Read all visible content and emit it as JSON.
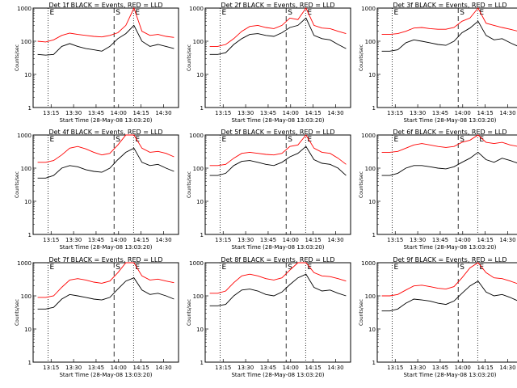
{
  "chart_data": [
    {
      "type": "line",
      "title": "Det 1f BLACK = Events, RED = LLD",
      "ylabel": "Counts/sec",
      "xlabel": "Start Time (28-May-08 13:03:20)",
      "yscale": "log",
      "ylim": [
        1,
        1000
      ],
      "yticks": [
        "1",
        "10",
        "100",
        "1000"
      ],
      "xticks": [
        "13:15",
        "13:30",
        "13:45",
        "14:00",
        "14:15",
        "14:30"
      ],
      "markers": [
        {
          "label": "E",
          "style": "dotted",
          "at": "13:13"
        },
        {
          "label": "S",
          "style": "dashed",
          "at": "13:57"
        },
        {
          "label": "E",
          "style": "dotted",
          "at": "14:10"
        }
      ],
      "series": [
        {
          "name": "LLD",
          "color": "#ff0000",
          "values": [
            100,
            95,
            110,
            150,
            175,
            160,
            150,
            140,
            135,
            150,
            180,
            300,
            1000,
            200,
            150,
            160,
            140,
            130
          ]
        },
        {
          "name": "Events",
          "color": "#000000",
          "values": [
            40,
            38,
            40,
            70,
            85,
            70,
            60,
            55,
            50,
            70,
            120,
            170,
            300,
            100,
            70,
            80,
            70,
            60
          ]
        }
      ]
    },
    {
      "type": "line",
      "title": "Det 2f BLACK = Events, RED = LLD",
      "ylabel": "Counts/sec",
      "xlabel": "Start Time (28-May-08 13:03:20)",
      "yscale": "log",
      "ylim": [
        1,
        1000
      ],
      "yticks": [
        "1",
        "10",
        "100",
        "1000"
      ],
      "xticks": [
        "13:15",
        "13:30",
        "13:45",
        "14:00",
        "14:15",
        "14:30"
      ],
      "markers": [
        {
          "label": "E",
          "style": "dotted",
          "at": "13:13"
        },
        {
          "label": "S",
          "style": "dashed",
          "at": "13:57"
        },
        {
          "label": "E",
          "style": "dotted",
          "at": "14:10"
        }
      ],
      "series": [
        {
          "name": "LLD",
          "color": "#ff0000",
          "values": [
            70,
            70,
            80,
            120,
            200,
            280,
            300,
            260,
            240,
            300,
            500,
            450,
            1000,
            300,
            250,
            240,
            200,
            170
          ]
        },
        {
          "name": "Events",
          "color": "#000000",
          "values": [
            40,
            40,
            45,
            80,
            120,
            160,
            170,
            150,
            140,
            180,
            260,
            300,
            500,
            150,
            120,
            110,
            80,
            60
          ]
        }
      ]
    },
    {
      "type": "line",
      "title": "Det 3f BLACK = Events, RED = LLD",
      "ylabel": "Counts/sec",
      "xlabel": "Start Time (28-May-08 13:03:20)",
      "yscale": "log",
      "ylim": [
        1,
        1000
      ],
      "yticks": [
        "1",
        "10",
        "100",
        "1000"
      ],
      "xticks": [
        "13:15",
        "13:30",
        "13:45",
        "14:00",
        "14:15",
        "14:30"
      ],
      "markers": [
        {
          "label": "E",
          "style": "dotted",
          "at": "13:13"
        },
        {
          "label": "S",
          "style": "dashed",
          "at": "13:57"
        },
        {
          "label": "E",
          "style": "dotted",
          "at": "14:10"
        }
      ],
      "series": [
        {
          "name": "LLD",
          "color": "#ff0000",
          "values": [
            160,
            160,
            170,
            200,
            250,
            260,
            240,
            230,
            230,
            260,
            400,
            500,
            1000,
            350,
            300,
            260,
            230,
            200
          ]
        },
        {
          "name": "Events",
          "color": "#000000",
          "values": [
            50,
            50,
            55,
            90,
            110,
            100,
            90,
            80,
            75,
            100,
            180,
            250,
            400,
            150,
            110,
            120,
            90,
            70
          ]
        }
      ]
    },
    {
      "type": "line",
      "title": "Det 4f BLACK = Events, RED = LLD",
      "ylabel": "Counts/sec",
      "xlabel": "Start Time (28-May-08 13:03:20)",
      "yscale": "log",
      "ylim": [
        1,
        1000
      ],
      "yticks": [
        "1",
        "10",
        "100",
        "1000"
      ],
      "xticks": [
        "13:15",
        "13:30",
        "13:45",
        "14:00",
        "14:15",
        "14:30"
      ],
      "markers": [
        {
          "label": "E",
          "style": "dotted",
          "at": "13:13"
        },
        {
          "label": "S",
          "style": "dashed",
          "at": "13:57"
        },
        {
          "label": "E",
          "style": "dotted",
          "at": "14:10"
        }
      ],
      "series": [
        {
          "name": "LLD",
          "color": "#ff0000",
          "values": [
            150,
            150,
            170,
            250,
            400,
            450,
            380,
            300,
            250,
            280,
            500,
            1000,
            1000,
            400,
            300,
            320,
            280,
            220
          ]
        },
        {
          "name": "Events",
          "color": "#000000",
          "values": [
            50,
            50,
            60,
            100,
            120,
            110,
            90,
            80,
            75,
            100,
            180,
            300,
            400,
            150,
            120,
            130,
            100,
            80
          ]
        }
      ]
    },
    {
      "type": "line",
      "title": "Det 5f BLACK = Events, RED = LLD",
      "ylabel": "Counts/sec",
      "xlabel": "Start Time (28-May-08 13:03:20)",
      "yscale": "log",
      "ylim": [
        1,
        1000
      ],
      "yticks": [
        "1",
        "10",
        "100",
        "1000"
      ],
      "xticks": [
        "13:15",
        "13:30",
        "13:45",
        "14:00",
        "14:15",
        "14:30"
      ],
      "markers": [
        {
          "label": "E",
          "style": "dotted",
          "at": "13:13"
        },
        {
          "label": "S",
          "style": "dashed",
          "at": "13:57"
        },
        {
          "label": "E",
          "style": "dotted",
          "at": "14:10"
        }
      ],
      "series": [
        {
          "name": "LLD",
          "color": "#ff0000",
          "values": [
            120,
            120,
            130,
            200,
            280,
            300,
            280,
            260,
            250,
            280,
            450,
            500,
            1000,
            400,
            300,
            280,
            200,
            130
          ]
        },
        {
          "name": "Events",
          "color": "#000000",
          "values": [
            60,
            60,
            70,
            120,
            160,
            170,
            150,
            130,
            120,
            150,
            220,
            280,
            450,
            180,
            140,
            130,
            100,
            60
          ]
        }
      ]
    },
    {
      "type": "line",
      "title": "Det 6f BLACK = Events, RED = LLD",
      "ylabel": "Counts/sec",
      "xlabel": "Start Time (28-May-08 13:03:20)",
      "yscale": "log",
      "ylim": [
        1,
        1000
      ],
      "yticks": [
        "1",
        "10",
        "100",
        "1000"
      ],
      "xticks": [
        "13:15",
        "13:30",
        "13:45",
        "14:00",
        "14:15",
        "14:30"
      ],
      "markers": [
        {
          "label": "E",
          "style": "dotted",
          "at": "13:13"
        },
        {
          "label": "S",
          "style": "dashed",
          "at": "13:57"
        },
        {
          "label": "E",
          "style": "dotted",
          "at": "14:10"
        }
      ],
      "series": [
        {
          "name": "LLD",
          "color": "#ff0000",
          "values": [
            300,
            300,
            320,
            400,
            500,
            550,
            500,
            450,
            420,
            450,
            600,
            700,
            1000,
            600,
            550,
            600,
            500,
            450
          ]
        },
        {
          "name": "Events",
          "color": "#000000",
          "values": [
            60,
            60,
            70,
            100,
            120,
            120,
            110,
            100,
            95,
            110,
            150,
            200,
            300,
            180,
            150,
            200,
            170,
            140
          ]
        }
      ]
    },
    {
      "type": "line",
      "title": "Det 7f BLACK = Events, RED = LLD",
      "ylabel": "Counts/sec",
      "xlabel": "Start Time (28-May-08 13:03:20)",
      "yscale": "log",
      "ylim": [
        1,
        1000
      ],
      "yticks": [
        "1",
        "10",
        "100",
        "1000"
      ],
      "xticks": [
        "13:15",
        "13:30",
        "13:45",
        "14:00",
        "14:15",
        "14:30"
      ],
      "markers": [
        {
          "label": "E",
          "style": "dotted",
          "at": "13:13"
        },
        {
          "label": "S",
          "style": "dashed",
          "at": "13:57"
        },
        {
          "label": "E",
          "style": "dotted",
          "at": "14:10"
        }
      ],
      "series": [
        {
          "name": "LLD",
          "color": "#ff0000",
          "values": [
            90,
            90,
            100,
            180,
            300,
            330,
            300,
            260,
            240,
            280,
            500,
            1000,
            1000,
            400,
            300,
            320,
            280,
            250
          ]
        },
        {
          "name": "Events",
          "color": "#000000",
          "values": [
            40,
            40,
            45,
            80,
            110,
            100,
            90,
            80,
            75,
            90,
            160,
            280,
            350,
            150,
            110,
            120,
            100,
            80
          ]
        }
      ]
    },
    {
      "type": "line",
      "title": "Det 8f BLACK = Events, RED = LLD",
      "ylabel": "Counts/sec",
      "xlabel": "Start Time (28-May-08 13:03:20)",
      "yscale": "log",
      "ylim": [
        1,
        1000
      ],
      "yticks": [
        "1",
        "10",
        "100",
        "1000"
      ],
      "xticks": [
        "13:15",
        "13:30",
        "13:45",
        "14:00",
        "14:15",
        "14:30"
      ],
      "markers": [
        {
          "label": "E",
          "style": "dotted",
          "at": "13:13"
        },
        {
          "label": "S",
          "style": "dashed",
          "at": "13:57"
        },
        {
          "label": "E",
          "style": "dotted",
          "at": "14:10"
        }
      ],
      "series": [
        {
          "name": "LLD",
          "color": "#ff0000",
          "values": [
            120,
            120,
            140,
            250,
            400,
            450,
            400,
            330,
            300,
            350,
            600,
            1000,
            1000,
            500,
            400,
            380,
            330,
            280
          ]
        },
        {
          "name": "Events",
          "color": "#000000",
          "values": [
            50,
            50,
            55,
            100,
            150,
            160,
            140,
            110,
            100,
            130,
            220,
            350,
            450,
            180,
            140,
            150,
            120,
            100
          ]
        }
      ]
    },
    {
      "type": "line",
      "title": "Det 9f BLACK = Events, RED = LLD",
      "ylabel": "Counts/sec",
      "xlabel": "Start Time (28-May-08 13:03:20)",
      "yscale": "log",
      "ylim": [
        1,
        1000
      ],
      "yticks": [
        "1",
        "10",
        "100",
        "1000"
      ],
      "xticks": [
        "13:15",
        "13:30",
        "13:45",
        "14:00",
        "14:15",
        "14:30"
      ],
      "markers": [
        {
          "label": "E",
          "style": "dotted",
          "at": "13:13"
        },
        {
          "label": "S",
          "style": "dashed",
          "at": "13:57"
        },
        {
          "label": "E",
          "style": "dotted",
          "at": "14:10"
        }
      ],
      "series": [
        {
          "name": "LLD",
          "color": "#ff0000",
          "values": [
            100,
            100,
            110,
            150,
            200,
            210,
            190,
            170,
            160,
            190,
            350,
            700,
            1000,
            500,
            350,
            330,
            280,
            230
          ]
        },
        {
          "name": "Events",
          "color": "#000000",
          "values": [
            35,
            35,
            40,
            60,
            80,
            75,
            70,
            60,
            55,
            70,
            120,
            200,
            280,
            130,
            100,
            110,
            90,
            70
          ]
        }
      ]
    }
  ]
}
